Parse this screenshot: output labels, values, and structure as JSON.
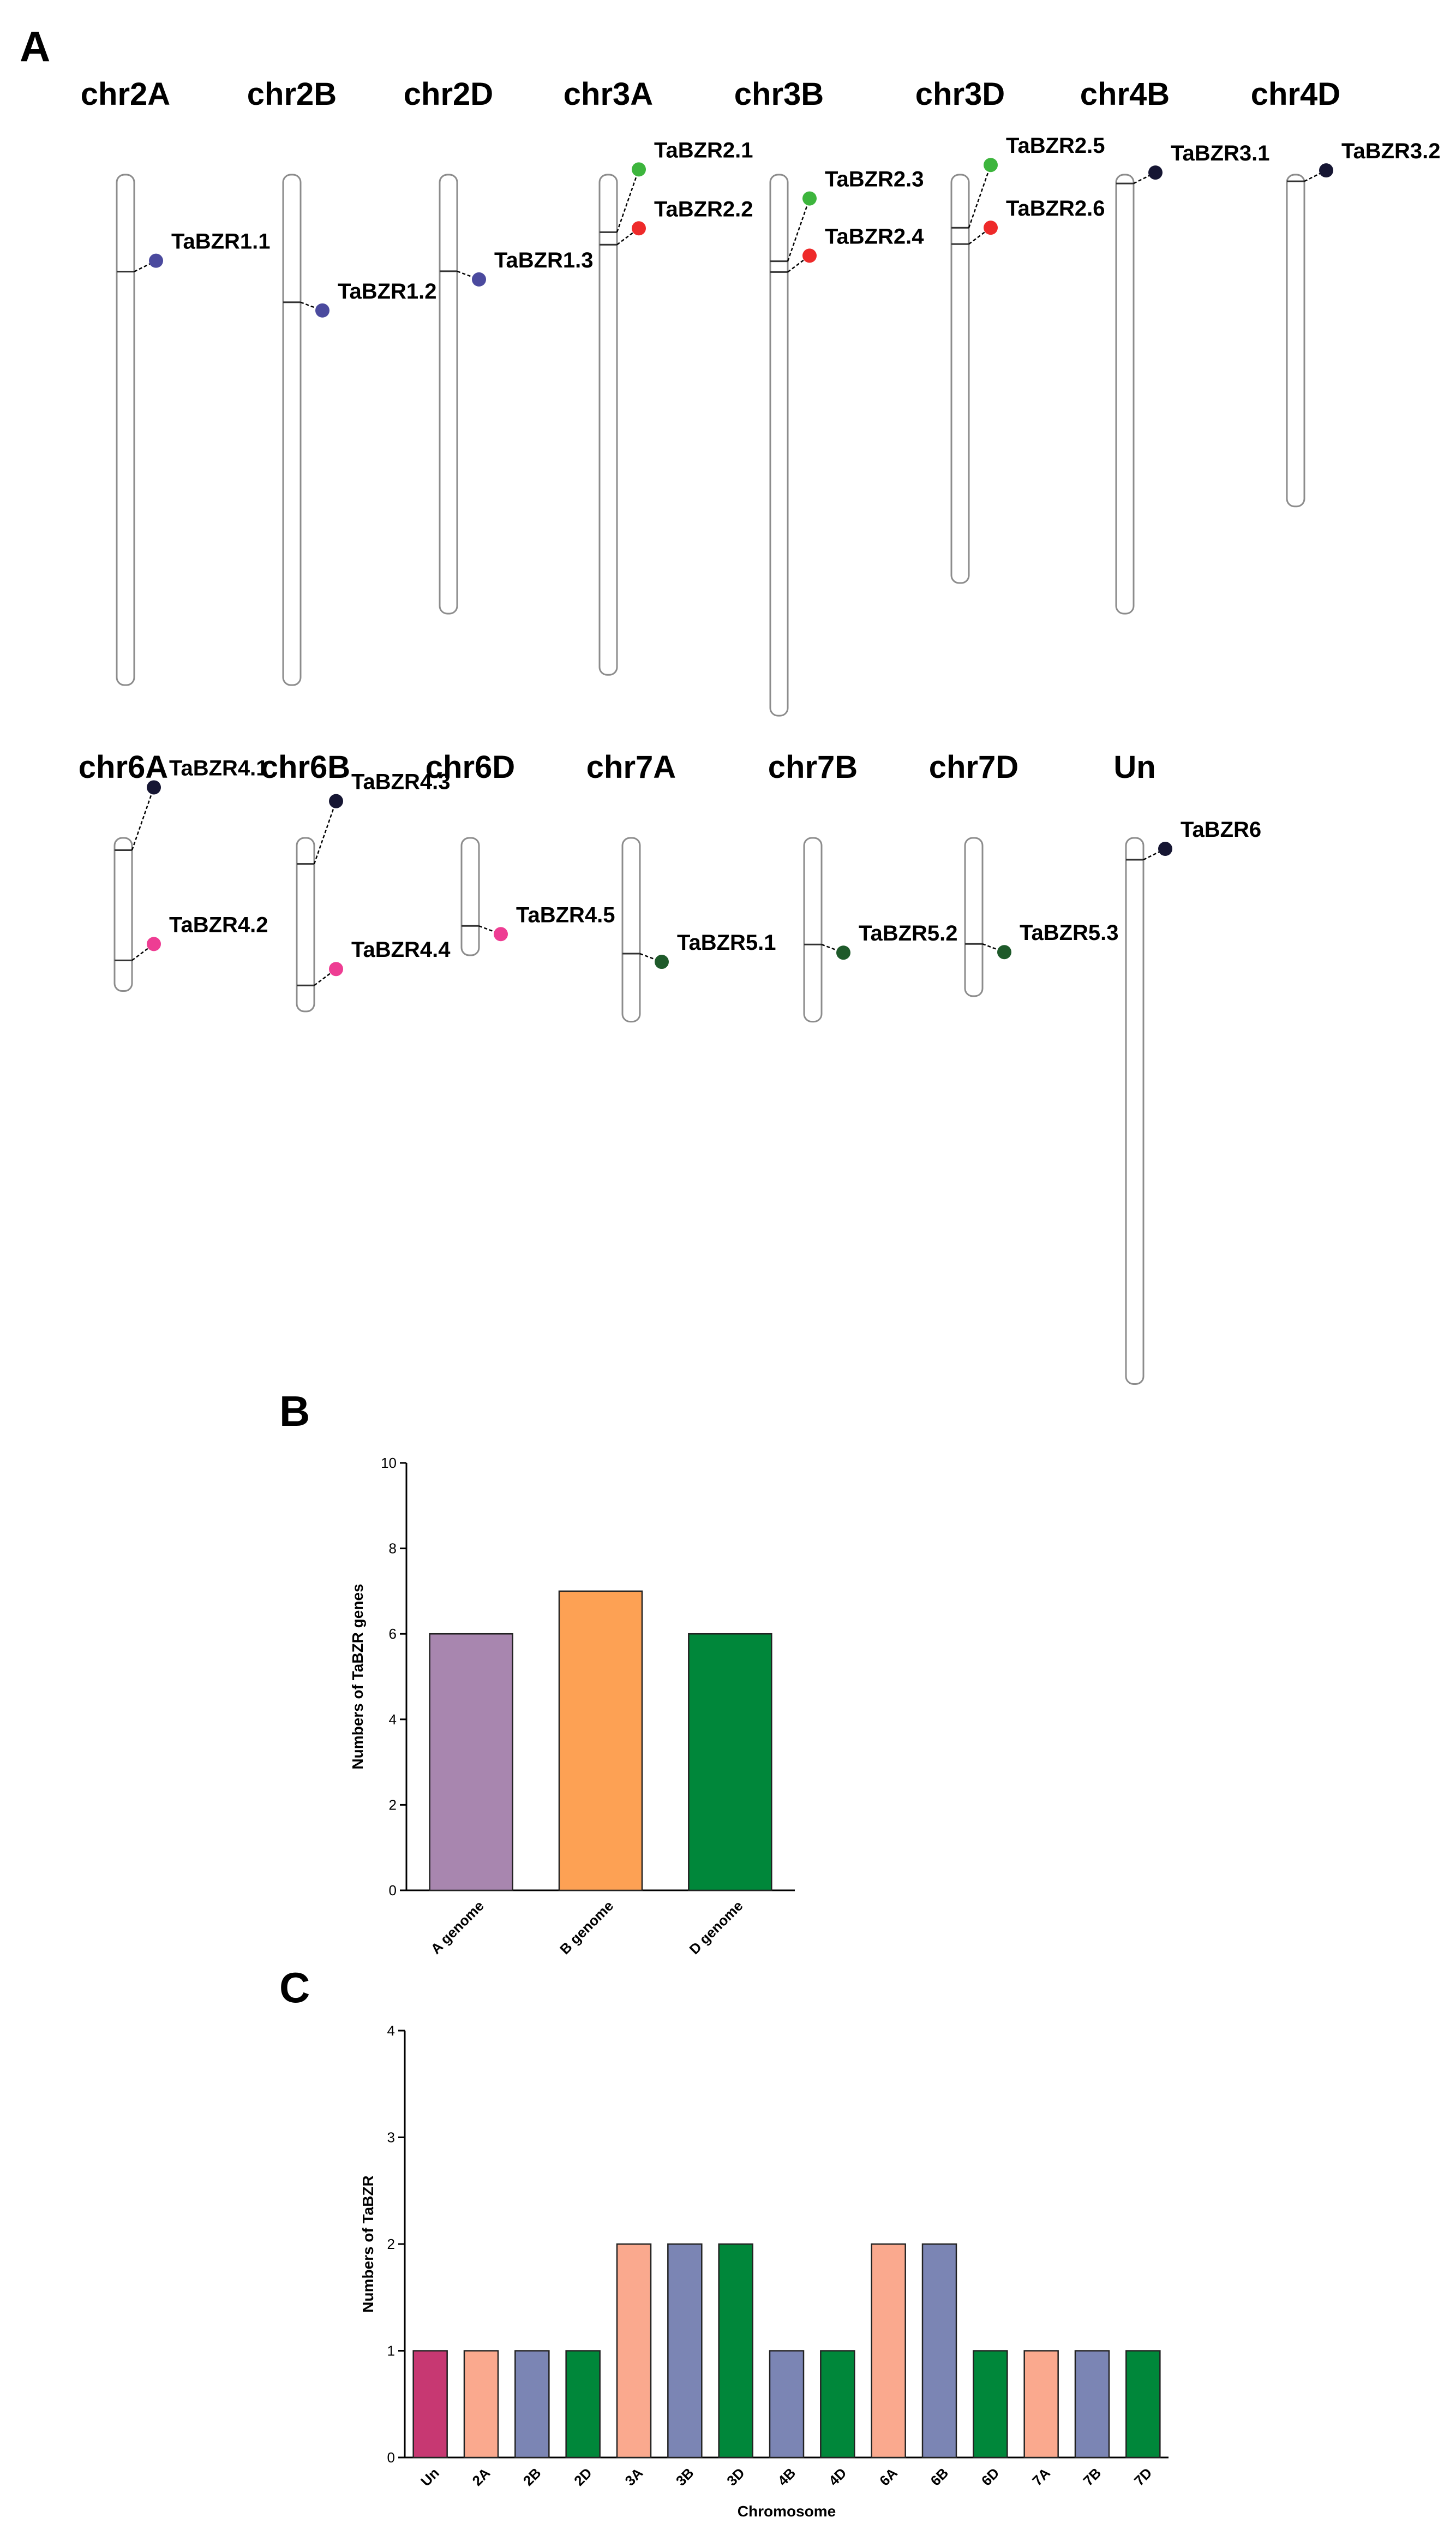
{
  "panels": {
    "a": "A",
    "b": "B",
    "c": "C"
  },
  "colors": {
    "TaBZR1": "#4B4A9E",
    "TaBZR2_odd": "#3DB53D",
    "TaBZR2_even": "#EE2A2A",
    "TaBZR3": "#161633",
    "TaBZR4_odd": "#161633",
    "TaBZR4_even": "#EE3D93",
    "TaBZR5": "#1E5A2A",
    "TaBZR6": "#161633"
  },
  "karyotype": {
    "chromosomes": [
      {
        "name": "chr2A",
        "row": 1,
        "length": 1.0,
        "genes": [
          {
            "label": "TaBZR1.1",
            "pos": 0.19,
            "color": "#4B4A9E"
          }
        ]
      },
      {
        "name": "chr2B",
        "row": 1,
        "length": 1.0,
        "genes": [
          {
            "label": "TaBZR1.2",
            "pos": 0.25,
            "color": "#4B4A9E"
          }
        ]
      },
      {
        "name": "chr2D",
        "row": 1,
        "length": 0.86,
        "genes": [
          {
            "label": "TaBZR1.3",
            "pos": 0.22,
            "color": "#4B4A9E"
          }
        ]
      },
      {
        "name": "chr3A",
        "row": 1,
        "length": 0.98,
        "genes": [
          {
            "label": "TaBZR2.1",
            "pos": 0.115,
            "color": "#3DB53D"
          },
          {
            "label": "TaBZR2.2",
            "pos": 0.14,
            "color": "#EE2A2A"
          }
        ]
      },
      {
        "name": "chr3B",
        "row": 1,
        "length": 1.06,
        "genes": [
          {
            "label": "TaBZR2.3",
            "pos": 0.16,
            "color": "#3DB53D"
          },
          {
            "label": "TaBZR2.4",
            "pos": 0.18,
            "color": "#EE2A2A"
          }
        ]
      },
      {
        "name": "chr3D",
        "row": 1,
        "length": 0.8,
        "genes": [
          {
            "label": "TaBZR2.5",
            "pos": 0.13,
            "color": "#3DB53D"
          },
          {
            "label": "TaBZR2.6",
            "pos": 0.17,
            "color": "#EE2A2A"
          }
        ]
      },
      {
        "name": "chr4B",
        "row": 1,
        "length": 0.86,
        "genes": [
          {
            "label": "TaBZR3.1",
            "pos": 0.02,
            "color": "#161633"
          }
        ]
      },
      {
        "name": "chr4D",
        "row": 1,
        "length": 0.65,
        "genes": [
          {
            "label": "TaBZR3.2",
            "pos": 0.02,
            "color": "#161633"
          }
        ]
      },
      {
        "name": "chr6A",
        "row": 2,
        "length": 0.3,
        "genes": [
          {
            "label": "TaBZR4.1",
            "pos": 0.08,
            "color": "#161633"
          },
          {
            "label": "TaBZR4.2",
            "pos": 0.8,
            "color": "#EE3D93"
          }
        ]
      },
      {
        "name": "chr6B",
        "row": 2,
        "length": 0.34,
        "genes": [
          {
            "label": "TaBZR4.3",
            "pos": 0.15,
            "color": "#161633"
          },
          {
            "label": "TaBZR4.4",
            "pos": 0.85,
            "color": "#EE3D93"
          }
        ]
      },
      {
        "name": "chr6D",
        "row": 2,
        "length": 0.23,
        "genes": [
          {
            "label": "TaBZR4.5",
            "pos": 0.75,
            "color": "#EE3D93"
          }
        ]
      },
      {
        "name": "chr7A",
        "row": 2,
        "length": 0.36,
        "genes": [
          {
            "label": "TaBZR5.1",
            "pos": 0.63,
            "color": "#1E5A2A"
          }
        ]
      },
      {
        "name": "chr7B",
        "row": 2,
        "length": 0.36,
        "genes": [
          {
            "label": "TaBZR5.2",
            "pos": 0.58,
            "color": "#1E5A2A"
          }
        ]
      },
      {
        "name": "chr7D",
        "row": 2,
        "length": 0.31,
        "genes": [
          {
            "label": "TaBZR5.3",
            "pos": 0.67,
            "color": "#1E5A2A"
          }
        ]
      },
      {
        "name": "Un",
        "row": 2,
        "length": 1.07,
        "genes": [
          {
            "label": "TaBZR6",
            "pos": 0.04,
            "color": "#161633"
          }
        ]
      }
    ]
  },
  "chart_data": [
    {
      "type": "bar",
      "categories": [
        "A genome",
        "B genome",
        "D genome"
      ],
      "values": [
        6,
        7,
        6
      ],
      "colors": [
        "#A886AF",
        "#FDA154",
        "#00873A"
      ],
      "ylabel": "Numbers of TaBZR genes",
      "xlabel": "",
      "ylim": [
        0,
        10
      ],
      "yticks": [
        0,
        2,
        4,
        6,
        8,
        10
      ]
    },
    {
      "type": "bar",
      "categories": [
        "Un",
        "2A",
        "2B",
        "2D",
        "3A",
        "3B",
        "3D",
        "4B",
        "4D",
        "6A",
        "6B",
        "6D",
        "7A",
        "7B",
        "7D"
      ],
      "values": [
        1,
        1,
        1,
        1,
        2,
        2,
        2,
        1,
        1,
        2,
        2,
        1,
        1,
        1,
        1
      ],
      "colors": [
        "#C73872",
        "#FAA98E",
        "#7B85B4",
        "#00873A",
        "#FAA98E",
        "#7B85B4",
        "#00873A",
        "#7B85B4",
        "#00873A",
        "#FAA98E",
        "#7B85B4",
        "#00873A",
        "#FAA98E",
        "#7B85B4",
        "#00873A"
      ],
      "ylabel": "Numbers of TaBZR",
      "xlabel": "Chromosome",
      "ylim": [
        0,
        4
      ],
      "yticks": [
        0,
        1,
        2,
        3,
        4
      ]
    }
  ]
}
